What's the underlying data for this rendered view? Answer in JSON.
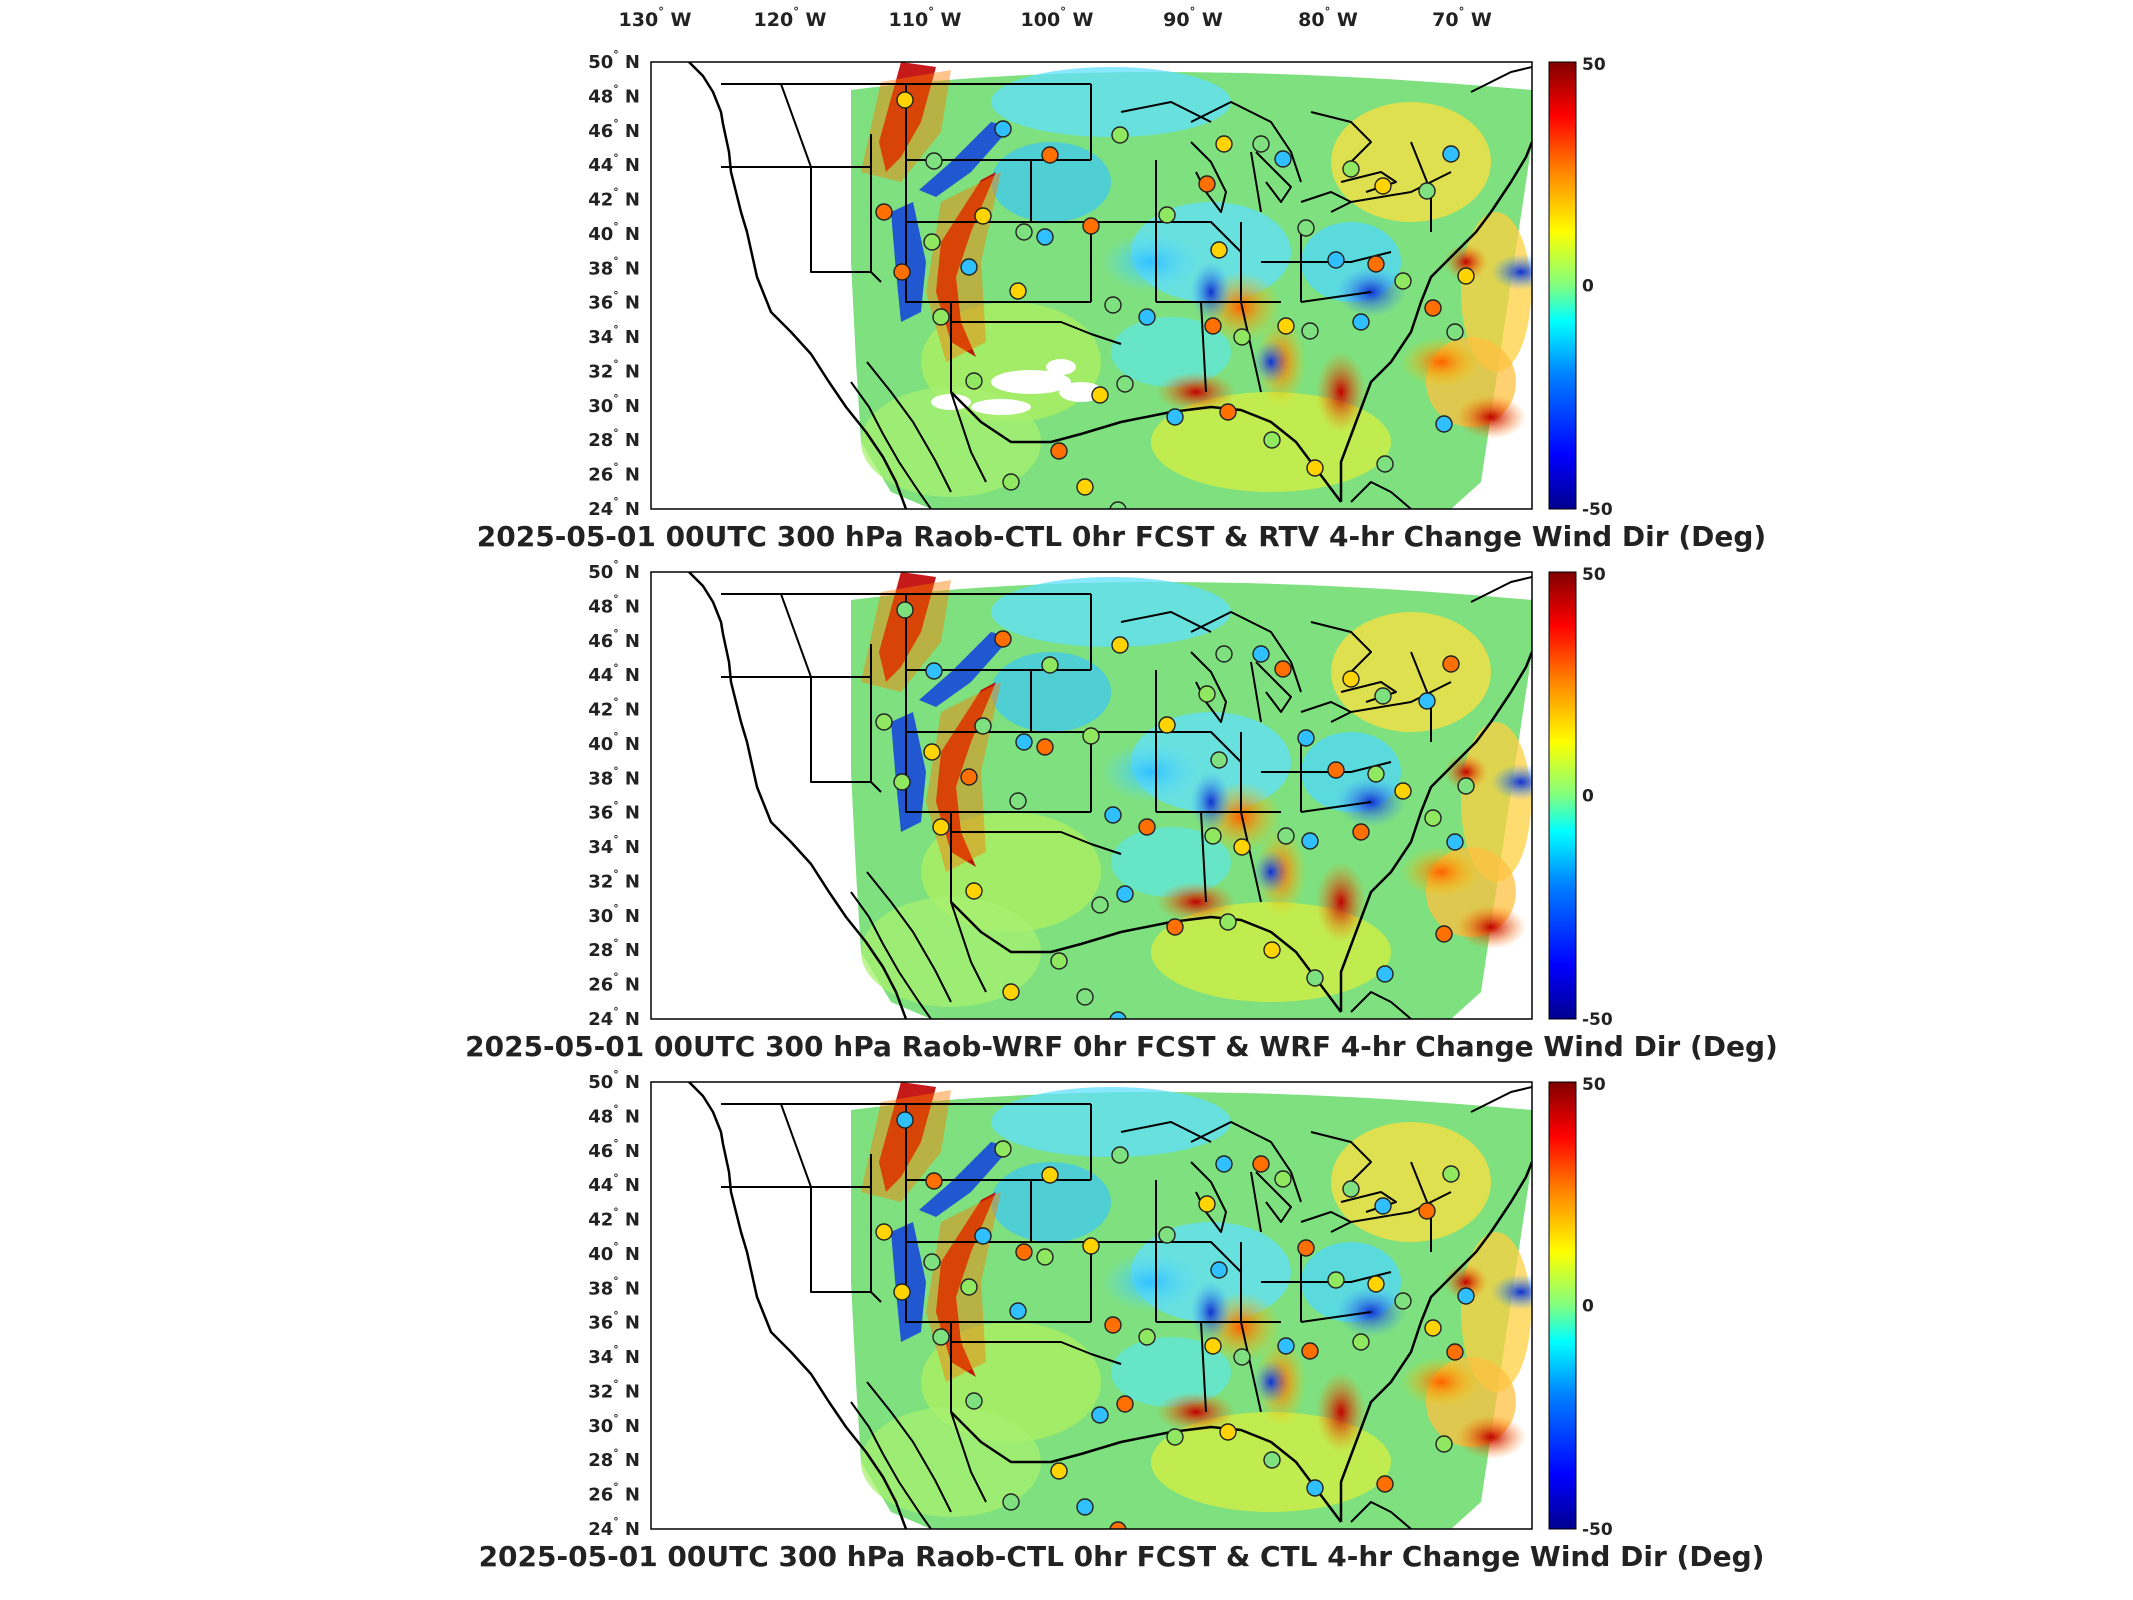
{
  "top_lon_labels": [
    {
      "deg": "130",
      "dir": "W"
    },
    {
      "deg": "120",
      "dir": "W"
    },
    {
      "deg": "110",
      "dir": "W"
    },
    {
      "deg": "100",
      "dir": "W"
    },
    {
      "deg": "90",
      "dir": "W"
    },
    {
      "deg": "80",
      "dir": "W"
    },
    {
      "deg": "70",
      "dir": "W"
    }
  ],
  "lat_labels": [
    {
      "deg": "50",
      "dir": "N"
    },
    {
      "deg": "48",
      "dir": "N"
    },
    {
      "deg": "46",
      "dir": "N"
    },
    {
      "deg": "44",
      "dir": "N"
    },
    {
      "deg": "42",
      "dir": "N"
    },
    {
      "deg": "40",
      "dir": "N"
    },
    {
      "deg": "38",
      "dir": "N"
    },
    {
      "deg": "36",
      "dir": "N"
    },
    {
      "deg": "34",
      "dir": "N"
    },
    {
      "deg": "32",
      "dir": "N"
    },
    {
      "deg": "30",
      "dir": "N"
    },
    {
      "deg": "28",
      "dir": "N"
    },
    {
      "deg": "26",
      "dir": "N"
    },
    {
      "deg": "24",
      "dir": "N"
    }
  ],
  "colorbar": {
    "max_label": "50",
    "mid_label": "0",
    "min_label": "-50",
    "stops": [
      "#00008f",
      "#0000ff",
      "#0080ff",
      "#00ffff",
      "#80ff80",
      "#ffff00",
      "#ff8000",
      "#ff0000",
      "#800000"
    ]
  },
  "panels": [
    {
      "title": "2025-05-01 00UTC 300 hPa Raob-CTL 0hr FCST & RTV 4-hr Change Wind Dir (Deg)"
    },
    {
      "title": "2025-05-01 00UTC 300 hPa Raob-WRF 0hr FCST & WRF 4-hr Change Wind Dir (Deg)"
    },
    {
      "title": "2025-05-01 00UTC 300 hPa Raob-CTL 0hr FCST & CTL 4-hr Change Wind Dir (Deg)"
    }
  ],
  "station_circle_color": "#222222",
  "colors": {
    "field_base": "#7ee07e",
    "map_lines": "#000000"
  }
}
